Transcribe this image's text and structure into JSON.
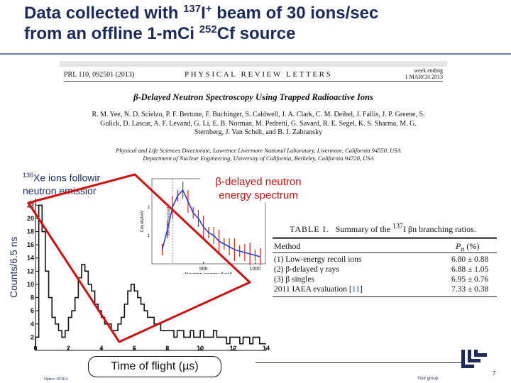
{
  "slide": {
    "title_line1_pre": "Data collected with ",
    "title_line1_sup": "137",
    "title_line1_mid": "I",
    "title_line1_sup2": "+",
    "title_line1_post": " beam of 30 ions/sec",
    "title_line2_pre": "from an offline 1-m",
    "title_line2_ci": "Ci ",
    "title_line2_sup": "252",
    "title_line2_post": "Cf source",
    "page_number": "7",
    "footer_left": "Option: UCRL#",
    "footer_right": "Your group",
    "accent_color": "#1a2b5c",
    "highlight_color": "#cc1111"
  },
  "paper": {
    "citation": "PRL 110, 092501 (2013)",
    "journal": "PHYSICAL REVIEW LETTERS",
    "date_line1": "week ending",
    "date_line2": "1 MARCH 2013",
    "title": "β-Delayed Neutron Spectroscopy Using Trapped Radioactive Ions",
    "authors": "R. M. Yee, N. D. Scielzo, P. F. Bertone, F. Buchinger, S. Caldwell, J. A. Clark, C. M. Deibel, J. Fallis, J. P. Greene, S. Gulick, D. Lascar, A. F. Levand, G. Li, E. B. Norman, M. Pedretti, G. Savard, R. E. Segel, K. S. Sharma, M. G. Sternberg, J. Van Schelt, and B. J. Zabransky",
    "affiliation1": "Physical and Life Sciences Directorate, Lawrence Livermore National Laboratory, Livermore, California 94550, USA",
    "affiliation2": "Department of Nuclear Engineering, University of California, Berkeley, California 94720, USA"
  },
  "annotations": {
    "xe_label_sup": "136",
    "xe_label_line1": "Xe ions followir",
    "xe_label_line2": "neutron emissior",
    "bdn_line1": "β-delayed neutron",
    "bdn_line2": "energy spectrum",
    "y_axis_label": "Counts/6.5 ns",
    "x_axis_label": "Time of flight (µs)"
  },
  "table": {
    "title_label": "TABLE I.",
    "title_text": "Summary of the",
    "title_sup": "137",
    "title_after": "I βn branching ratios.",
    "col_method": "Method",
    "col_p": "P",
    "col_p_sub": "n",
    "col_p_unit": " (%)",
    "rows": [
      {
        "method": "(1) Low-energy recoil ions",
        "value": "6.80 ± 0.88"
      },
      {
        "method": "(2) β-delayed γ rays",
        "value": "6.88 ± 1.05"
      },
      {
        "method": "(3) β singles",
        "value": "6.95 ± 0.76"
      },
      {
        "method": "2011 IAEA evaluation [",
        "ref": "11",
        "method_end": "]",
        "value": "7.33 ± 0.38"
      }
    ]
  },
  "chart_data": [
    {
      "type": "line",
      "title": "",
      "xlabel": "Time of flight (µs)",
      "ylabel": "Counts/6.5 ns",
      "xlim": [
        0,
        14
      ],
      "ylim": [
        0,
        23
      ],
      "x_ticks": [
        "0",
        "2",
        "4",
        "6",
        "8",
        "10",
        "12",
        "14"
      ],
      "y_ticks": [
        "2",
        "4",
        "6",
        "8",
        "10",
        "12",
        "14",
        "16",
        "18",
        "20",
        "22"
      ],
      "grid": false,
      "series": [
        {
          "x": [
            0.1,
            0.3,
            0.5,
            0.7,
            0.9,
            1.1,
            1.3,
            1.5,
            1.7,
            1.9,
            2.1,
            2.3,
            2.5,
            2.7,
            2.9,
            3.1,
            3.3,
            3.5,
            3.7,
            3.9,
            4.1,
            4.3,
            4.5,
            4.7,
            4.9,
            5.1,
            5.3,
            5.5,
            5.7,
            5.9,
            6.1,
            6.3,
            6.5,
            6.7,
            6.9,
            7.1,
            7.3,
            7.5,
            7.7,
            7.9,
            8.1,
            8.3,
            8.5,
            8.7,
            8.9,
            9.1,
            9.3,
            9.5,
            9.7,
            9.9,
            10.1,
            10.3,
            10.5,
            10.7,
            10.9,
            11.1,
            11.3,
            11.5,
            11.7,
            11.9,
            12.1,
            12.3,
            12.5,
            12.7,
            12.9,
            13.1,
            13.3,
            13.5,
            13.7,
            13.9
          ],
          "y": [
            2,
            22,
            18,
            12,
            8,
            5,
            4,
            3,
            2,
            3,
            5,
            6,
            8,
            11,
            13,
            12,
            10,
            9,
            7,
            6,
            5,
            4,
            4,
            3,
            3,
            4,
            5,
            7,
            9,
            10,
            9,
            8,
            7,
            6,
            5,
            5,
            4,
            4,
            3,
            3,
            3,
            3,
            2,
            3,
            3,
            2,
            2,
            3,
            2,
            2,
            3,
            2,
            2,
            2,
            3,
            2,
            2,
            2,
            1,
            2,
            2,
            2,
            1,
            2,
            2,
            1,
            2,
            2,
            1,
            1
          ]
        }
      ]
    },
    {
      "type": "line",
      "title": "",
      "xlabel": "Neutron energy (keV)",
      "ylabel": "Counts/keV",
      "xlim": [
        0,
        1100
      ],
      "x_ticks": [
        "500",
        "1000"
      ],
      "y_ticks": [
        "1",
        "2"
      ],
      "annotations": [
        "200-keV threshold"
      ],
      "series": [
        {
          "x": [
            100,
            150,
            200,
            250,
            300,
            350,
            400,
            450,
            500,
            550,
            600,
            650,
            700,
            750,
            800,
            850,
            900,
            950,
            1000,
            1050
          ],
          "y": [
            0.5,
            1.2,
            2.0,
            2.4,
            2.6,
            2.2,
            1.8,
            1.6,
            1.3,
            1.1,
            1.0,
            0.8,
            0.7,
            0.6,
            0.5,
            0.45,
            0.4,
            0.35,
            0.3,
            0.25
          ]
        }
      ]
    }
  ]
}
